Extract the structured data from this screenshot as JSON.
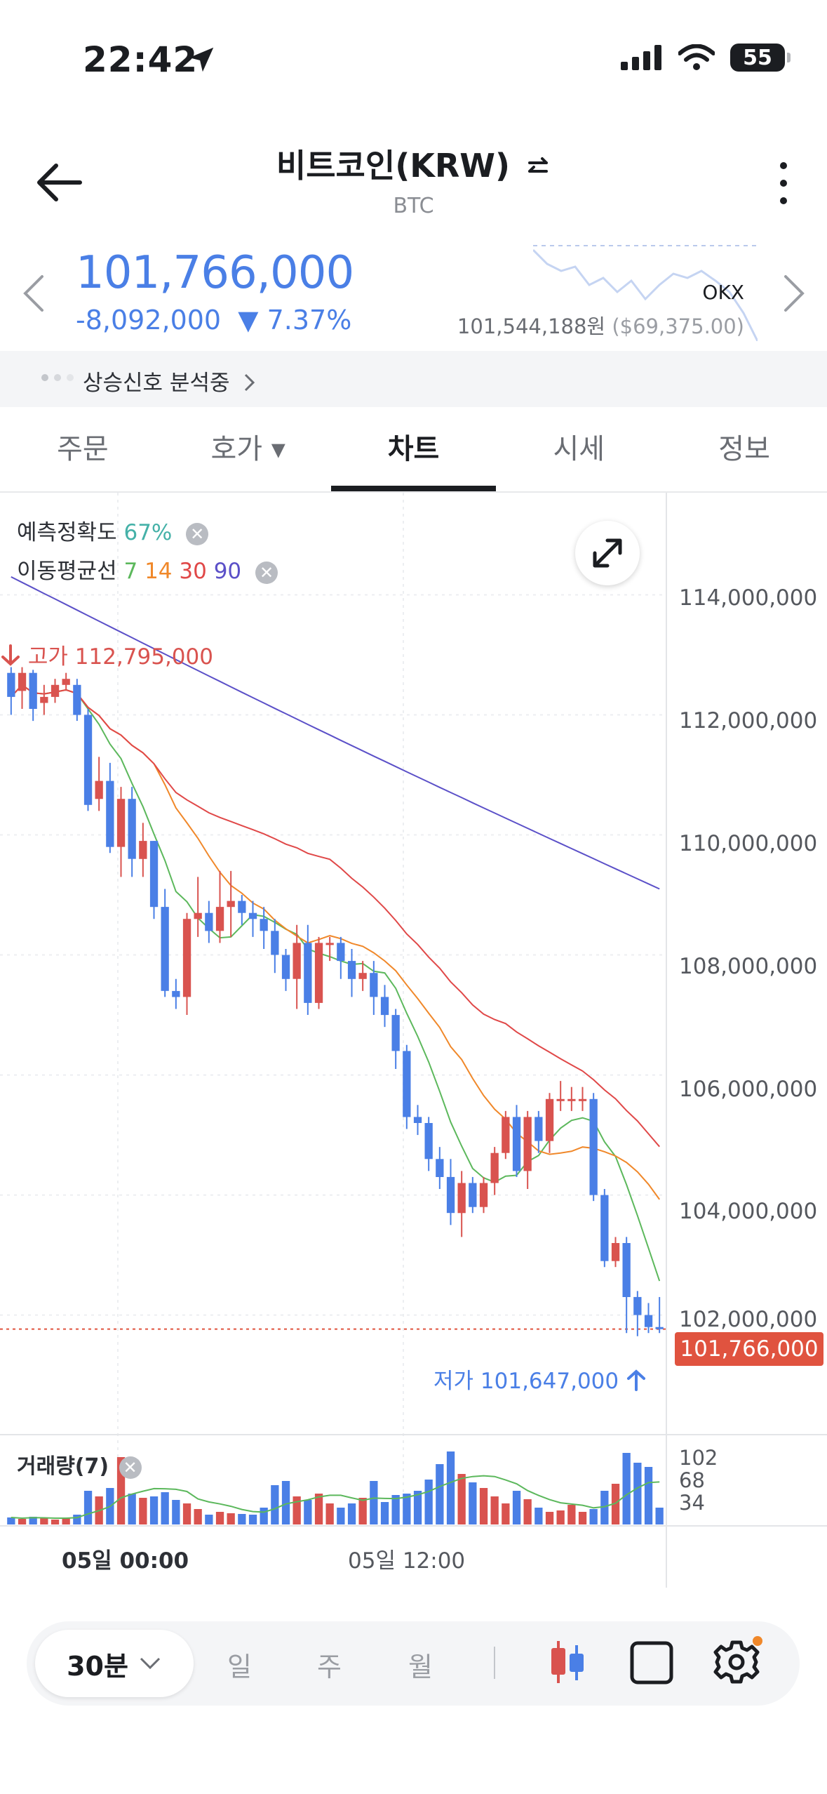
{
  "status_bar": {
    "time": "22:42",
    "battery": "55"
  },
  "header": {
    "title": "비트코인(KRW)",
    "subtitle": "BTC"
  },
  "price": {
    "value": "101,766,000",
    "change": "-8,092,000",
    "change_pct": "▼ 7.37%"
  },
  "exchange": {
    "name": "OKX",
    "price": "101,544,188원",
    "usd": "($69,375.00)"
  },
  "signal": {
    "text": "상승신호 분석중"
  },
  "tabs": [
    {
      "label": "주문"
    },
    {
      "label": "호가 ▾"
    },
    {
      "label": "차트"
    },
    {
      "label": "시세"
    },
    {
      "label": "정보"
    }
  ],
  "legend": {
    "accuracy_label": "예측정확도",
    "accuracy_value": "67%",
    "ma_label": "이동평균선",
    "ma_periods": [
      "7",
      "14",
      "30",
      "90"
    ]
  },
  "colors": {
    "up": "#d9534f",
    "down": "#4a7fe6",
    "ma7": "#5cb85c",
    "ma14": "#f0882a",
    "ma30": "#e04848",
    "ma90": "#5b50c8"
  },
  "chart": {
    "high_label": "고가 112,795,000",
    "low_label": "저가 101,647,000",
    "current_price": "101,766,000",
    "price_axis": [
      "114,000,000",
      "112,000,000",
      "110,000,000",
      "108,000,000",
      "106,000,000",
      "104,000,000",
      "102,000,000"
    ],
    "volume_label": "거래량(7)",
    "volume_axis": [
      "102",
      "68",
      "34"
    ],
    "x_axis": [
      "05일 00:00",
      "05일 12:00"
    ]
  },
  "chart_data": {
    "type": "candlestick",
    "ylim": [
      101200000,
      115000000
    ],
    "candles": [
      {
        "o": 112700000,
        "c": 112300000,
        "h": 112795000,
        "l": 112000000,
        "v": 10
      },
      {
        "o": 112400000,
        "c": 112700000,
        "h": 112795000,
        "l": 112100000,
        "v": 8
      },
      {
        "o": 112700000,
        "c": 112100000,
        "h": 112750000,
        "l": 111900000,
        "v": 11
      },
      {
        "o": 112200000,
        "c": 112300000,
        "h": 112500000,
        "l": 112000000,
        "v": 9
      },
      {
        "o": 112300000,
        "c": 112500000,
        "h": 112600000,
        "l": 112200000,
        "v": 7
      },
      {
        "o": 112500000,
        "c": 112600000,
        "h": 112700000,
        "l": 112400000,
        "v": 9
      },
      {
        "o": 112500000,
        "c": 112000000,
        "h": 112600000,
        "l": 111900000,
        "v": 14
      },
      {
        "o": 112000000,
        "c": 110500000,
        "h": 112100000,
        "l": 110400000,
        "v": 48
      },
      {
        "o": 110600000,
        "c": 110900000,
        "h": 111300000,
        "l": 110400000,
        "v": 40
      },
      {
        "o": 110900000,
        "c": 109800000,
        "h": 111200000,
        "l": 109700000,
        "v": 52
      },
      {
        "o": 109800000,
        "c": 110600000,
        "h": 110800000,
        "l": 109300000,
        "v": 96
      },
      {
        "o": 110600000,
        "c": 109600000,
        "h": 110800000,
        "l": 109300000,
        "v": 44
      },
      {
        "o": 109600000,
        "c": 109900000,
        "h": 110200000,
        "l": 109300000,
        "v": 38
      },
      {
        "o": 109900000,
        "c": 108800000,
        "h": 109900000,
        "l": 108600000,
        "v": 40
      },
      {
        "o": 108800000,
        "c": 107400000,
        "h": 109100000,
        "l": 107300000,
        "v": 46
      },
      {
        "o": 107400000,
        "c": 107300000,
        "h": 107600000,
        "l": 107100000,
        "v": 35
      },
      {
        "o": 107300000,
        "c": 108600000,
        "h": 108700000,
        "l": 107000000,
        "v": 30
      },
      {
        "o": 108600000,
        "c": 108700000,
        "h": 109300000,
        "l": 108300000,
        "v": 22
      },
      {
        "o": 108700000,
        "c": 108400000,
        "h": 108900000,
        "l": 108200000,
        "v": 14
      },
      {
        "o": 108400000,
        "c": 108800000,
        "h": 109400000,
        "l": 108200000,
        "v": 18
      },
      {
        "o": 108800000,
        "c": 108900000,
        "h": 109400000,
        "l": 108300000,
        "v": 16
      },
      {
        "o": 108900000,
        "c": 108700000,
        "h": 109000000,
        "l": 108500000,
        "v": 15
      },
      {
        "o": 108700000,
        "c": 108600000,
        "h": 108900000,
        "l": 108300000,
        "v": 14
      },
      {
        "o": 108600000,
        "c": 108400000,
        "h": 108800000,
        "l": 108100000,
        "v": 24
      },
      {
        "o": 108400000,
        "c": 108000000,
        "h": 108600000,
        "l": 107700000,
        "v": 56
      },
      {
        "o": 108000000,
        "c": 107600000,
        "h": 108100000,
        "l": 107400000,
        "v": 62
      },
      {
        "o": 107600000,
        "c": 108200000,
        "h": 108500000,
        "l": 107100000,
        "v": 40
      },
      {
        "o": 108200000,
        "c": 107200000,
        "h": 108500000,
        "l": 107000000,
        "v": 35
      },
      {
        "o": 107200000,
        "c": 108200000,
        "h": 108300000,
        "l": 107100000,
        "v": 44
      },
      {
        "o": 108200000,
        "c": 108200000,
        "h": 108300000,
        "l": 107900000,
        "v": 30
      },
      {
        "o": 108200000,
        "c": 107900000,
        "h": 108300000,
        "l": 107600000,
        "v": 24
      },
      {
        "o": 107900000,
        "c": 107600000,
        "h": 108100000,
        "l": 107300000,
        "v": 30
      },
      {
        "o": 107600000,
        "c": 107700000,
        "h": 107900000,
        "l": 107400000,
        "v": 38
      },
      {
        "o": 107700000,
        "c": 107300000,
        "h": 107900000,
        "l": 107000000,
        "v": 62
      },
      {
        "o": 107300000,
        "c": 107000000,
        "h": 107500000,
        "l": 106800000,
        "v": 32
      },
      {
        "o": 107000000,
        "c": 106400000,
        "h": 107100000,
        "l": 106100000,
        "v": 42
      },
      {
        "o": 106400000,
        "c": 105300000,
        "h": 106500000,
        "l": 105100000,
        "v": 44
      },
      {
        "o": 105300000,
        "c": 105200000,
        "h": 105500000,
        "l": 105000000,
        "v": 48
      },
      {
        "o": 105200000,
        "c": 104600000,
        "h": 105300000,
        "l": 104400000,
        "v": 64
      },
      {
        "o": 104600000,
        "c": 104300000,
        "h": 104800000,
        "l": 104100000,
        "v": 86
      },
      {
        "o": 104300000,
        "c": 103700000,
        "h": 104600000,
        "l": 103500000,
        "v": 104
      },
      {
        "o": 103700000,
        "c": 104200000,
        "h": 104400000,
        "l": 103300000,
        "v": 72
      },
      {
        "o": 104200000,
        "c": 103800000,
        "h": 104300000,
        "l": 103700000,
        "v": 60
      },
      {
        "o": 103800000,
        "c": 104200000,
        "h": 104300000,
        "l": 103700000,
        "v": 52
      },
      {
        "o": 104200000,
        "c": 104700000,
        "h": 104800000,
        "l": 104000000,
        "v": 40
      },
      {
        "o": 104700000,
        "c": 105300000,
        "h": 105400000,
        "l": 104600000,
        "v": 30
      },
      {
        "o": 105300000,
        "c": 104400000,
        "h": 105500000,
        "l": 104300000,
        "v": 48
      },
      {
        "o": 104400000,
        "c": 105300000,
        "h": 105400000,
        "l": 104100000,
        "v": 36
      },
      {
        "o": 105300000,
        "c": 104900000,
        "h": 105400000,
        "l": 104700000,
        "v": 24
      },
      {
        "o": 104900000,
        "c": 105600000,
        "h": 105700000,
        "l": 104700000,
        "v": 18
      },
      {
        "o": 105600000,
        "c": 105600000,
        "h": 105900000,
        "l": 105400000,
        "v": 20
      },
      {
        "o": 105600000,
        "c": 105600000,
        "h": 105800000,
        "l": 105400000,
        "v": 28
      },
      {
        "o": 105600000,
        "c": 105600000,
        "h": 105800000,
        "l": 105400000,
        "v": 18
      },
      {
        "o": 105600000,
        "c": 104000000,
        "h": 105700000,
        "l": 103900000,
        "v": 22
      },
      {
        "o": 104000000,
        "c": 102900000,
        "h": 104100000,
        "l": 102800000,
        "v": 48
      },
      {
        "o": 102900000,
        "c": 103200000,
        "h": 103300000,
        "l": 102800000,
        "v": 58
      },
      {
        "o": 103200000,
        "c": 102300000,
        "h": 103300000,
        "l": 101700000,
        "v": 102
      },
      {
        "o": 102300000,
        "c": 102000000,
        "h": 102400000,
        "l": 101647000,
        "v": 88
      },
      {
        "o": 102000000,
        "c": 101800000,
        "h": 102200000,
        "l": 101700000,
        "v": 82
      },
      {
        "o": 101800000,
        "c": 101766000,
        "h": 102300000,
        "l": 101700000,
        "v": 24
      }
    ]
  },
  "toolbar": {
    "interval": "30분",
    "periods": [
      "일",
      "주",
      "월"
    ]
  }
}
